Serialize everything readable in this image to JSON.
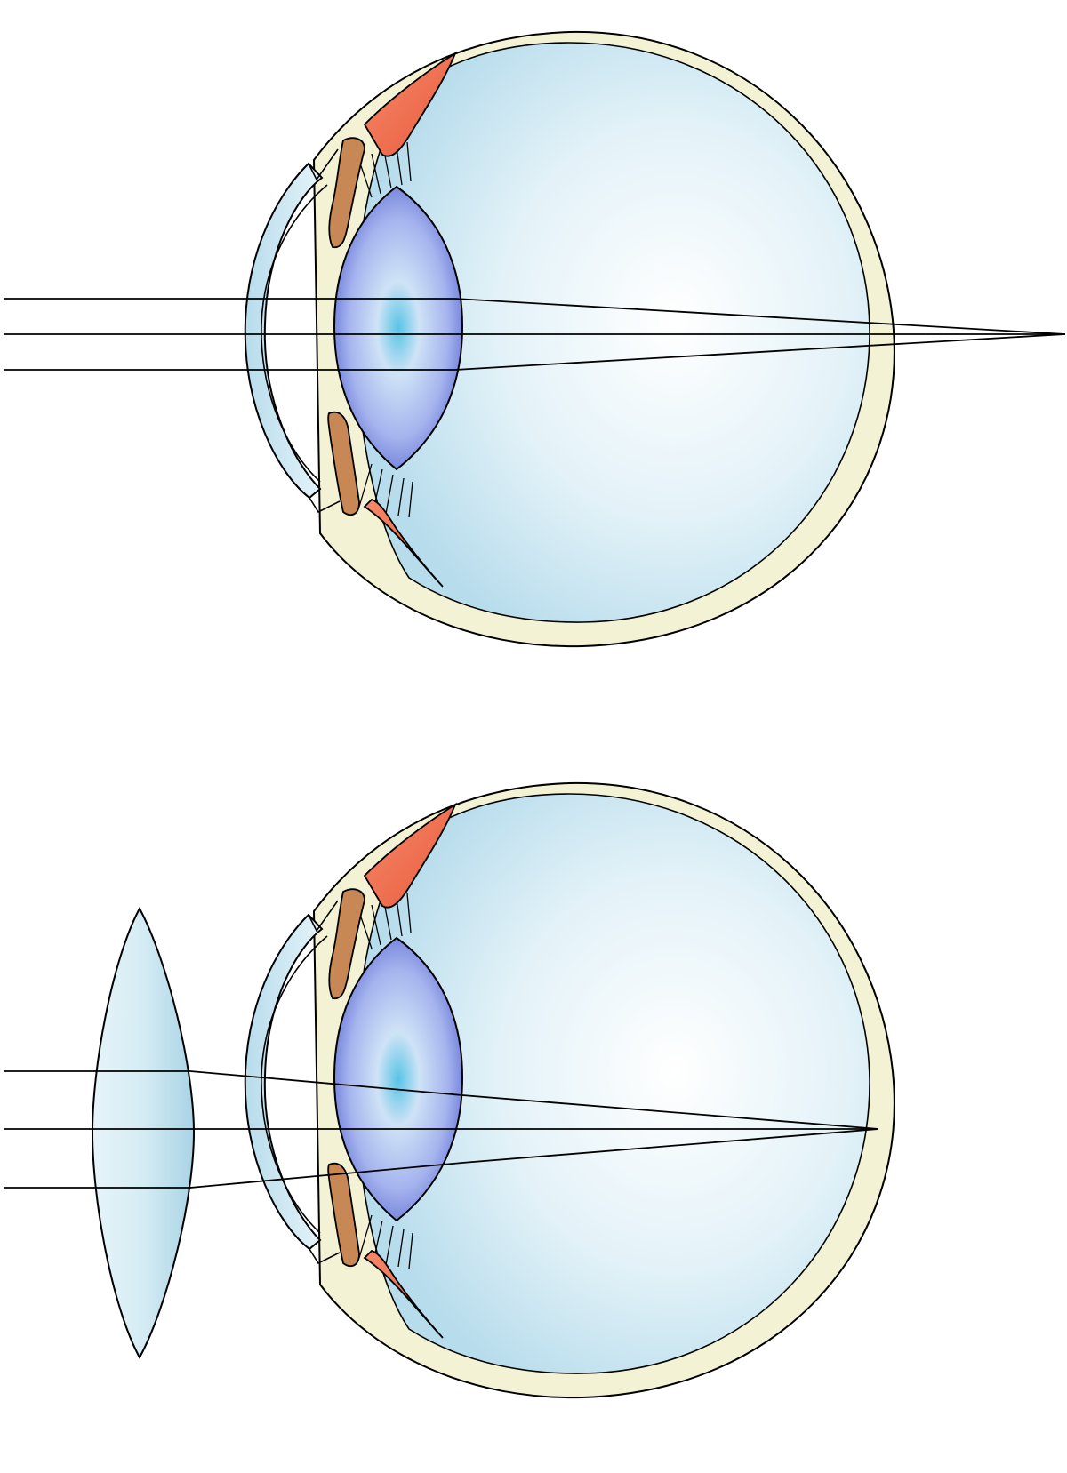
{
  "diagram": {
    "panels": [
      {
        "id": "uncorrected",
        "focus": "behind-retina",
        "rays": 3,
        "correction_lens": false
      },
      {
        "id": "corrected",
        "focus": "on-retina",
        "rays": 3,
        "correction_lens": true
      }
    ],
    "colors": {
      "sclera": "#f4f2d4",
      "vitreous": "#c9e6f1",
      "vitreous_center": "#f8fcfe",
      "cornea": "#d2ebf4",
      "lens_outer": "#6f7fd8",
      "lens_inner": "#a9b8ee",
      "lens_center": "#5cc6e6",
      "ciliary_muscle": "#f2714e",
      "iris": "#c88855",
      "convex_lens": "#d3ecf4",
      "outline": "#000000"
    }
  }
}
